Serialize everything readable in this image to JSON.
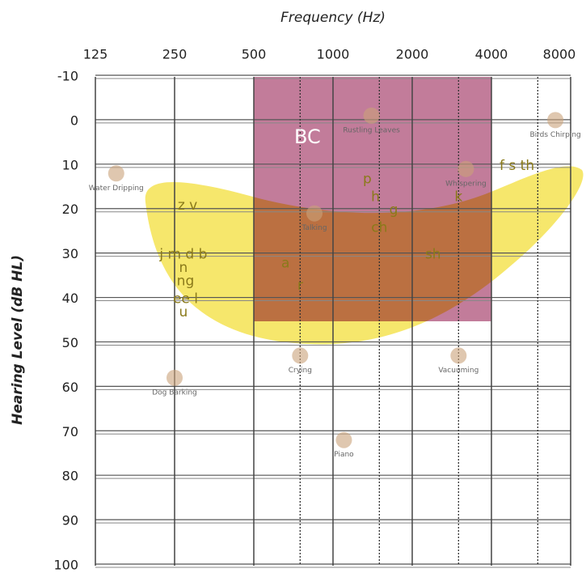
{
  "chart_data": {
    "type": "audiogram",
    "title": "Frequency (Hz)",
    "y_label": "Hearing Level (dB HL)",
    "log_x": true,
    "xlim": [
      125,
      8000
    ],
    "xticks": [
      125,
      250,
      500,
      1000,
      2000,
      4000,
      8000
    ],
    "minor_xticks": [
      750,
      1500,
      3000,
      6000
    ],
    "ylim": [
      -10,
      100
    ],
    "yticks": [
      -10,
      0,
      10,
      20,
      30,
      40,
      50,
      60,
      70,
      80,
      90,
      100
    ],
    "y_reversed": true,
    "grid": true,
    "regions": [
      {
        "label": "BC",
        "x": [
          500,
          4000
        ],
        "y": [
          -10,
          45
        ],
        "color": "#a8456f"
      }
    ],
    "speech_sounds": {
      "labels": [
        "z v",
        "j m d b",
        "n",
        "ng",
        "ee l",
        "u",
        "p",
        "h",
        "g",
        "ch",
        "sh",
        "k",
        "f s th",
        "a",
        "r"
      ],
      "x": [
        280,
        270,
        270,
        275,
        275,
        270,
        1350,
        1450,
        1700,
        1500,
        2400,
        3000,
        5000,
        660,
        750
      ],
      "y": [
        19,
        30,
        33,
        36,
        40,
        43,
        13,
        17,
        20,
        24,
        30,
        17,
        10,
        32,
        37
      ]
    },
    "environment": {
      "labels": [
        "Water Dripping",
        "Rustling Leaves",
        "Birds Chirping",
        "Whispering",
        "Talking",
        "Crying",
        "Vacuuming",
        "Dog Barking",
        "Piano"
      ],
      "x": [
        150,
        1400,
        7000,
        3200,
        850,
        750,
        3000,
        250,
        1100
      ],
      "y": [
        15,
        2,
        3,
        14,
        24,
        56,
        56,
        61,
        75
      ]
    }
  }
}
